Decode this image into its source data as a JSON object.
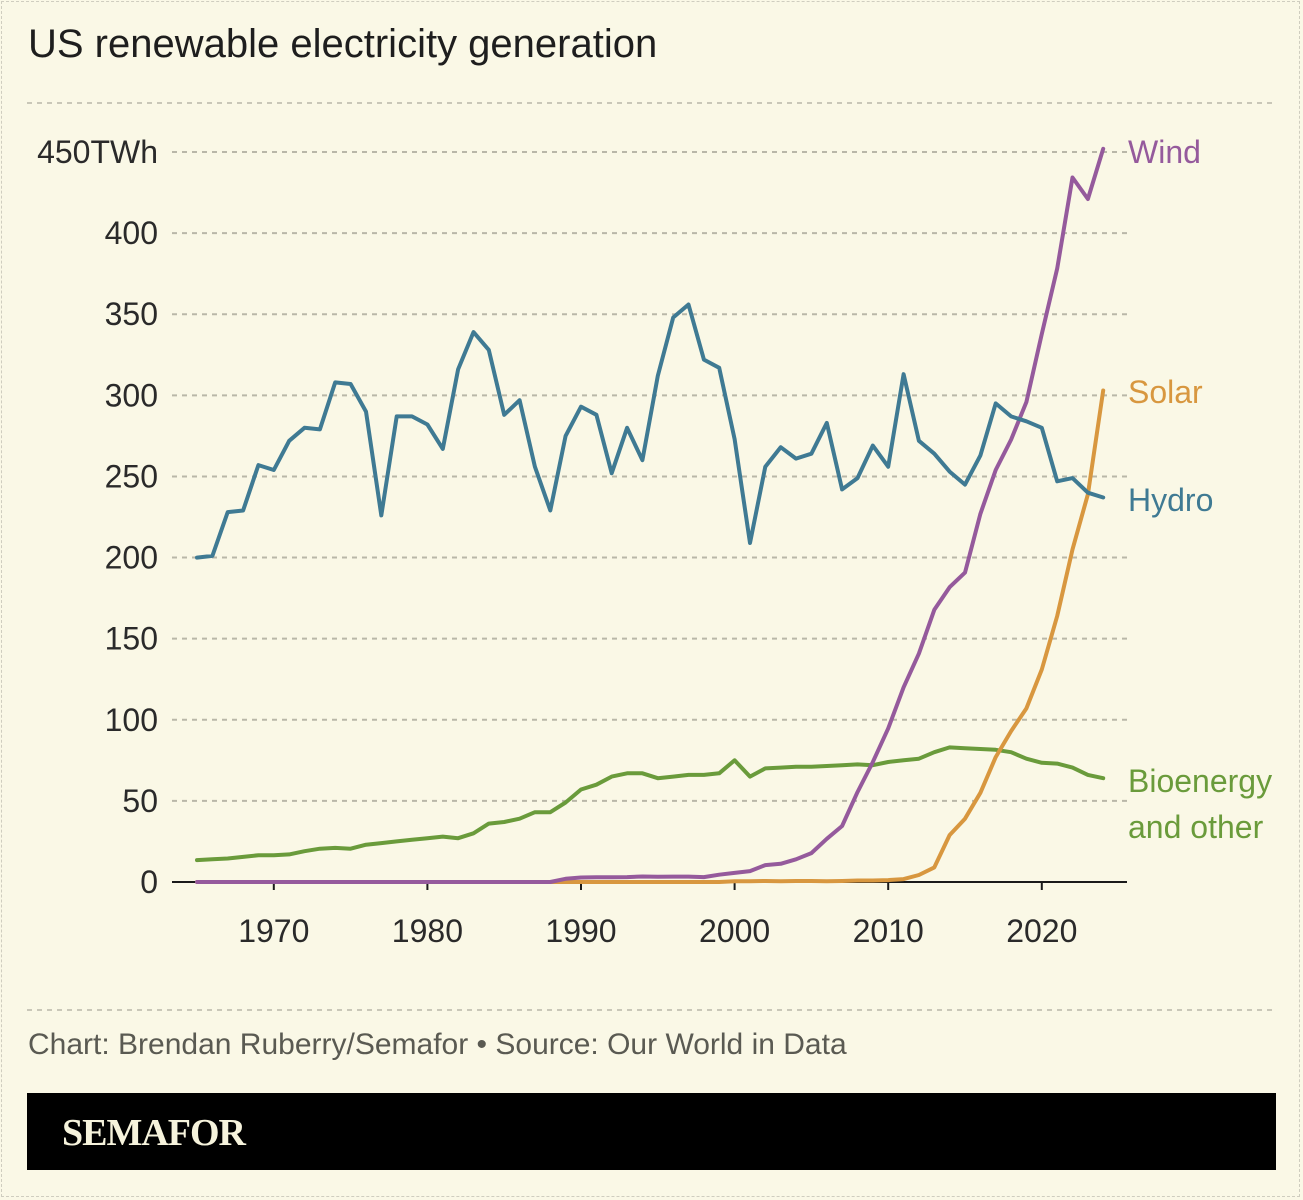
{
  "title": "US renewable electricity generation",
  "footer": "Chart: Brendan Ruberry/Semafor • Source: Our World in Data",
  "brand": "SEMAFOR",
  "colors": {
    "background": "#faf8e6",
    "hydro": "#3f7a93",
    "wind": "#955a9c",
    "solar": "#d8973f",
    "bio": "#6a9b3b"
  },
  "chart_data": {
    "type": "line",
    "title": "US renewable electricity generation",
    "ylim": [
      0,
      450
    ],
    "xlim": [
      1965,
      2024
    ],
    "grid": true,
    "legend": "direct-labels-right",
    "y_ticks": [
      {
        "value": 0,
        "label": "0"
      },
      {
        "value": 50,
        "label": "50"
      },
      {
        "value": 100,
        "label": "100"
      },
      {
        "value": 150,
        "label": "150"
      },
      {
        "value": 200,
        "label": "200"
      },
      {
        "value": 250,
        "label": "250"
      },
      {
        "value": 300,
        "label": "300"
      },
      {
        "value": 350,
        "label": "350"
      },
      {
        "value": 400,
        "label": "400"
      },
      {
        "value": 450,
        "label": "450TWh"
      }
    ],
    "x_ticks": [
      {
        "value": 1970,
        "label": "1970"
      },
      {
        "value": 1980,
        "label": "1980"
      },
      {
        "value": 1990,
        "label": "1990"
      },
      {
        "value": 2000,
        "label": "2000"
      },
      {
        "value": 2010,
        "label": "2010"
      },
      {
        "value": 2020,
        "label": "2020"
      }
    ],
    "start_year": 1965,
    "series": [
      {
        "key": "hydro",
        "name": "Hydro",
        "label_lines": [
          "Hydro"
        ],
        "color": "#3f7a93",
        "values": [
          200,
          201,
          228,
          229,
          257,
          254,
          272,
          280,
          279,
          308,
          307,
          290,
          226,
          287,
          287,
          282,
          267,
          316,
          339,
          328,
          288,
          297,
          256,
          229,
          275,
          293,
          288,
          252,
          280,
          260,
          312,
          348,
          356,
          322,
          317,
          273,
          209,
          256,
          268,
          261,
          264,
          283,
          242,
          249,
          269,
          256,
          313,
          272,
          264,
          253,
          245,
          263,
          295,
          287,
          284,
          280,
          247,
          249,
          240,
          237
        ]
      },
      {
        "key": "wind",
        "name": "Wind",
        "label_lines": [
          "Wind"
        ],
        "color": "#955a9c",
        "values": [
          0,
          0,
          0,
          0,
          0,
          0,
          0,
          0,
          0,
          0,
          0,
          0,
          0,
          0,
          0,
          0,
          0,
          0,
          0,
          0,
          0,
          0,
          0,
          0,
          2,
          2.8,
          2.9,
          2.9,
          3,
          3.4,
          3.2,
          3.3,
          3.3,
          3,
          4.5,
          5.6,
          6.7,
          10.4,
          11.2,
          14,
          17.8,
          26.6,
          34.5,
          55.4,
          73.9,
          94.7,
          120,
          140.8,
          167.8,
          181.7,
          190.7,
          227,
          254,
          272.7,
          295.9,
          337.9,
          378.2,
          434.3,
          421,
          452
        ]
      },
      {
        "key": "solar",
        "name": "Solar",
        "label_lines": [
          "Solar"
        ],
        "color": "#d8973f",
        "values": [
          0,
          0,
          0,
          0,
          0,
          0,
          0,
          0,
          0,
          0,
          0,
          0,
          0,
          0,
          0,
          0,
          0,
          0,
          0,
          0,
          0,
          0,
          0,
          0,
          0,
          0,
          0,
          0,
          0,
          0,
          0,
          0,
          0,
          0,
          0,
          0.5,
          0.5,
          0.6,
          0.5,
          0.6,
          0.6,
          0.5,
          0.6,
          0.9,
          0.9,
          1.2,
          1.8,
          4.3,
          9,
          28.9,
          39,
          55,
          77,
          93,
          107,
          131,
          164,
          205,
          239,
          303
        ]
      },
      {
        "key": "bio",
        "name": "Bioenergy and other",
        "label_lines": [
          "Bioenergy",
          "and other"
        ],
        "color": "#6a9b3b",
        "values": [
          13.5,
          14,
          14.5,
          15.5,
          16.5,
          16.5,
          17,
          19,
          20.5,
          21,
          20.5,
          23,
          24,
          25,
          26,
          27,
          28,
          27,
          30,
          36,
          37,
          39,
          43,
          43,
          49,
          57,
          60,
          65,
          67,
          67,
          64,
          65,
          66,
          66,
          67,
          75,
          65,
          70,
          70.5,
          71,
          71,
          71.5,
          72,
          72.5,
          72,
          74,
          75,
          76,
          80,
          83,
          82.5,
          82,
          81.5,
          80,
          76,
          73.5,
          73,
          70.5,
          66,
          64
        ]
      }
    ]
  }
}
